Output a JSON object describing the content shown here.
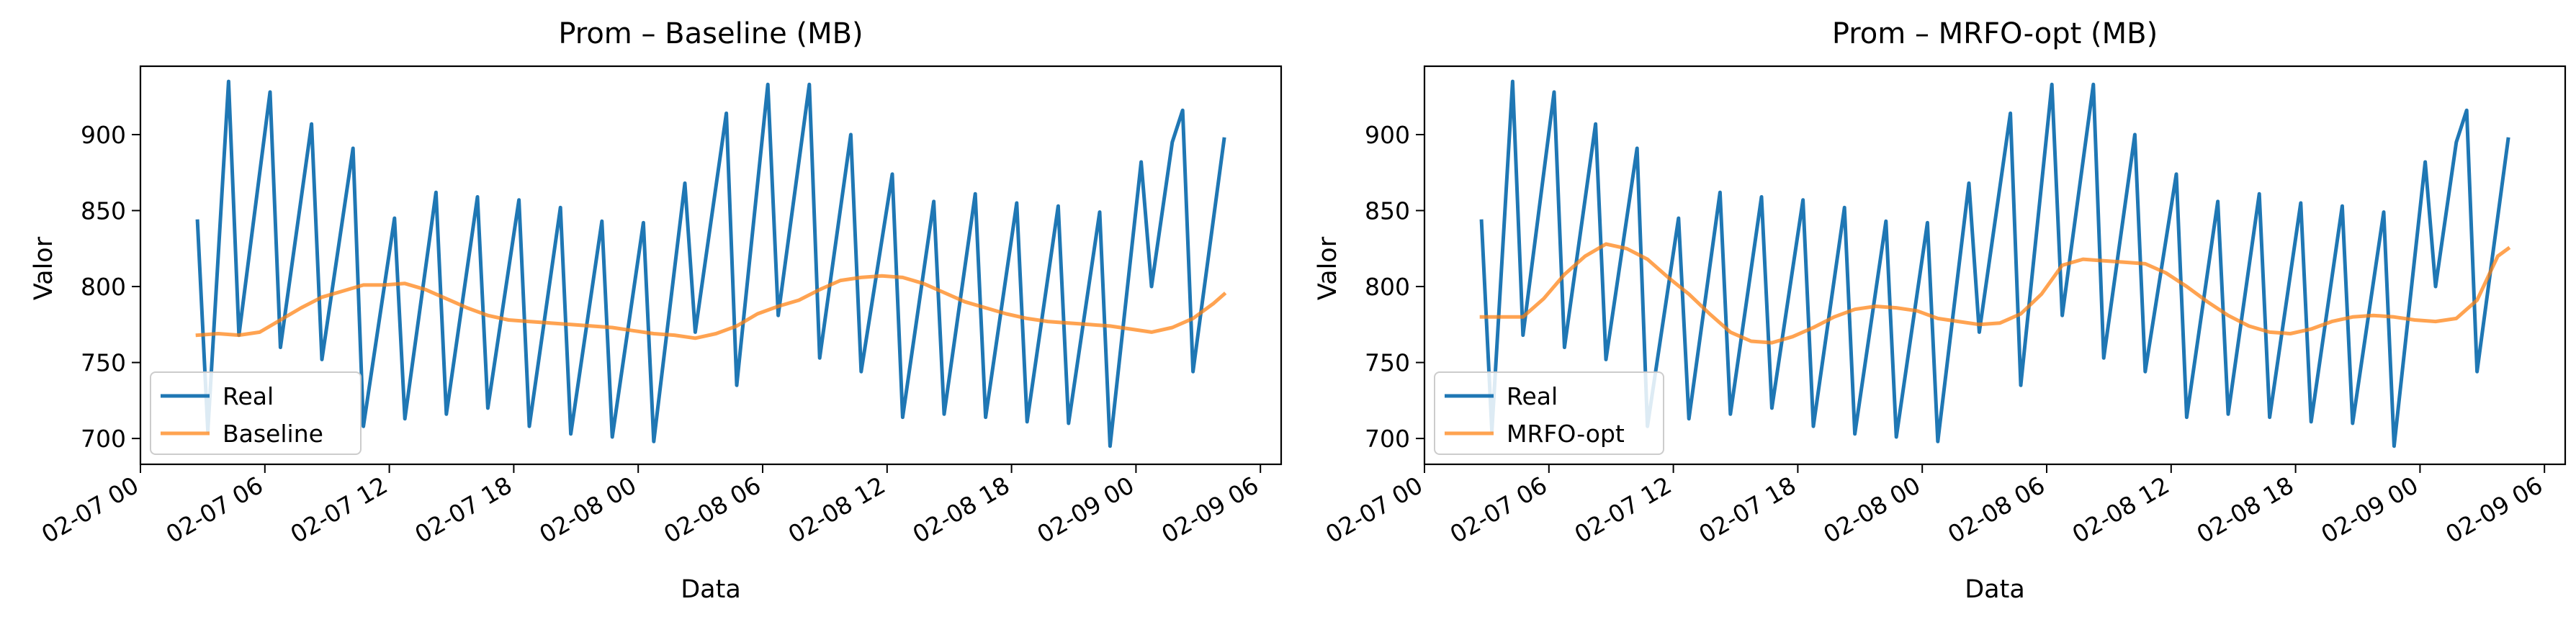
{
  "chart_data": [
    {
      "type": "line",
      "title": "Prom – Baseline (MB)",
      "xlabel": "Data",
      "ylabel": "Valor",
      "xlim": [
        "2023-02-07 00:00",
        "2023-02-09 07:00"
      ],
      "ylim": [
        683,
        945
      ],
      "x_ticks": [
        "02-07 00",
        "02-07 06",
        "02-07 12",
        "02-07 18",
        "02-08 00",
        "02-08 06",
        "02-08 12",
        "02-08 18",
        "02-09 00",
        "02-09 06"
      ],
      "y_ticks": [
        700,
        750,
        800,
        850,
        900
      ],
      "legend": "lower-left",
      "series": [
        {
          "name": "Real",
          "color": "#1f77b4",
          "x": [
            "2023-02-07 02:45",
            "2023-02-07 03:15",
            "2023-02-07 04:15",
            "2023-02-07 04:45",
            "2023-02-07 06:15",
            "2023-02-07 06:45",
            "2023-02-07 08:15",
            "2023-02-07 08:45",
            "2023-02-07 10:15",
            "2023-02-07 10:45",
            "2023-02-07 12:15",
            "2023-02-07 12:45",
            "2023-02-07 14:15",
            "2023-02-07 14:45",
            "2023-02-07 16:15",
            "2023-02-07 16:45",
            "2023-02-07 18:15",
            "2023-02-07 18:45",
            "2023-02-07 20:15",
            "2023-02-07 20:45",
            "2023-02-07 22:15",
            "2023-02-07 22:45",
            "2023-02-08 00:15",
            "2023-02-08 00:45",
            "2023-02-08 02:15",
            "2023-02-08 02:45",
            "2023-02-08 04:15",
            "2023-02-08 04:45",
            "2023-02-08 06:15",
            "2023-02-08 06:45",
            "2023-02-08 08:15",
            "2023-02-08 08:45",
            "2023-02-08 10:15",
            "2023-02-08 10:45",
            "2023-02-08 12:15",
            "2023-02-08 12:45",
            "2023-02-08 14:15",
            "2023-02-08 14:45",
            "2023-02-08 16:15",
            "2023-02-08 16:45",
            "2023-02-08 18:15",
            "2023-02-08 18:45",
            "2023-02-08 20:15",
            "2023-02-08 20:45",
            "2023-02-08 22:15",
            "2023-02-08 22:45",
            "2023-02-09 00:15",
            "2023-02-09 00:45",
            "2023-02-09 01:45",
            "2023-02-09 02:15",
            "2023-02-09 02:45",
            "2023-02-09 04:15"
          ],
          "y": [
            843,
            705,
            935,
            768,
            928,
            760,
            907,
            752,
            891,
            708,
            845,
            713,
            862,
            716,
            859,
            720,
            857,
            708,
            852,
            703,
            843,
            701,
            842,
            698,
            868,
            770,
            914,
            735,
            933,
            781,
            933,
            753,
            900,
            744,
            874,
            714,
            856,
            716,
            861,
            714,
            855,
            711,
            853,
            710,
            849,
            695,
            882,
            800,
            895,
            916,
            744,
            897
          ]
        },
        {
          "name": "Baseline",
          "color": "#ff7f0e",
          "x": [
            "2023-02-07 02:45",
            "2023-02-07 03:45",
            "2023-02-07 04:45",
            "2023-02-07 05:45",
            "2023-02-07 06:45",
            "2023-02-07 07:45",
            "2023-02-07 08:45",
            "2023-02-07 09:45",
            "2023-02-07 10:45",
            "2023-02-07 11:45",
            "2023-02-07 12:45",
            "2023-02-07 13:45",
            "2023-02-07 14:45",
            "2023-02-07 15:45",
            "2023-02-07 16:45",
            "2023-02-07 17:45",
            "2023-02-07 18:45",
            "2023-02-07 19:45",
            "2023-02-07 20:45",
            "2023-02-07 21:45",
            "2023-02-07 22:45",
            "2023-02-07 23:45",
            "2023-02-08 00:45",
            "2023-02-08 01:45",
            "2023-02-08 02:45",
            "2023-02-08 03:45",
            "2023-02-08 04:45",
            "2023-02-08 05:45",
            "2023-02-08 06:45",
            "2023-02-08 07:45",
            "2023-02-08 08:45",
            "2023-02-08 09:45",
            "2023-02-08 10:45",
            "2023-02-08 11:45",
            "2023-02-08 12:45",
            "2023-02-08 13:45",
            "2023-02-08 14:45",
            "2023-02-08 15:45",
            "2023-02-08 16:45",
            "2023-02-08 17:45",
            "2023-02-08 18:45",
            "2023-02-08 19:45",
            "2023-02-08 20:45",
            "2023-02-08 21:45",
            "2023-02-08 22:45",
            "2023-02-08 23:45",
            "2023-02-09 00:45",
            "2023-02-09 01:45",
            "2023-02-09 02:45",
            "2023-02-09 03:45",
            "2023-02-09 04:15"
          ],
          "y": [
            768,
            769,
            768,
            770,
            778,
            786,
            793,
            797,
            801,
            801,
            802,
            798,
            792,
            786,
            781,
            778,
            777,
            776,
            775,
            774,
            773,
            771,
            769,
            768,
            766,
            769,
            774,
            782,
            787,
            791,
            798,
            804,
            806,
            807,
            806,
            802,
            796,
            790,
            786,
            782,
            779,
            777,
            776,
            775,
            774,
            772,
            770,
            773,
            779,
            789,
            795
          ]
        }
      ]
    },
    {
      "type": "line",
      "title": "Prom – MRFO-opt (MB)",
      "xlabel": "Data",
      "ylabel": "Valor",
      "xlim": [
        "2023-02-07 00:00",
        "2023-02-09 07:00"
      ],
      "ylim": [
        683,
        945
      ],
      "x_ticks": [
        "02-07 00",
        "02-07 06",
        "02-07 12",
        "02-07 18",
        "02-08 00",
        "02-08 06",
        "02-08 12",
        "02-08 18",
        "02-09 00",
        "02-09 06"
      ],
      "y_ticks": [
        700,
        750,
        800,
        850,
        900
      ],
      "legend": "lower-left",
      "series": [
        {
          "name": "Real",
          "color": "#1f77b4",
          "x": [
            "2023-02-07 02:45",
            "2023-02-07 03:15",
            "2023-02-07 04:15",
            "2023-02-07 04:45",
            "2023-02-07 06:15",
            "2023-02-07 06:45",
            "2023-02-07 08:15",
            "2023-02-07 08:45",
            "2023-02-07 10:15",
            "2023-02-07 10:45",
            "2023-02-07 12:15",
            "2023-02-07 12:45",
            "2023-02-07 14:15",
            "2023-02-07 14:45",
            "2023-02-07 16:15",
            "2023-02-07 16:45",
            "2023-02-07 18:15",
            "2023-02-07 18:45",
            "2023-02-07 20:15",
            "2023-02-07 20:45",
            "2023-02-07 22:15",
            "2023-02-07 22:45",
            "2023-02-08 00:15",
            "2023-02-08 00:45",
            "2023-02-08 02:15",
            "2023-02-08 02:45",
            "2023-02-08 04:15",
            "2023-02-08 04:45",
            "2023-02-08 06:15",
            "2023-02-08 06:45",
            "2023-02-08 08:15",
            "2023-02-08 08:45",
            "2023-02-08 10:15",
            "2023-02-08 10:45",
            "2023-02-08 12:15",
            "2023-02-08 12:45",
            "2023-02-08 14:15",
            "2023-02-08 14:45",
            "2023-02-08 16:15",
            "2023-02-08 16:45",
            "2023-02-08 18:15",
            "2023-02-08 18:45",
            "2023-02-08 20:15",
            "2023-02-08 20:45",
            "2023-02-08 22:15",
            "2023-02-08 22:45",
            "2023-02-09 00:15",
            "2023-02-09 00:45",
            "2023-02-09 01:45",
            "2023-02-09 02:15",
            "2023-02-09 02:45",
            "2023-02-09 04:15"
          ],
          "y": [
            843,
            705,
            935,
            768,
            928,
            760,
            907,
            752,
            891,
            708,
            845,
            713,
            862,
            716,
            859,
            720,
            857,
            708,
            852,
            703,
            843,
            701,
            842,
            698,
            868,
            770,
            914,
            735,
            933,
            781,
            933,
            753,
            900,
            744,
            874,
            714,
            856,
            716,
            861,
            714,
            855,
            711,
            853,
            710,
            849,
            695,
            882,
            800,
            895,
            916,
            744,
            897
          ]
        },
        {
          "name": "MRFO-opt",
          "color": "#ff7f0e",
          "x": [
            "2023-02-07 02:45",
            "2023-02-07 03:45",
            "2023-02-07 04:45",
            "2023-02-07 05:45",
            "2023-02-07 06:45",
            "2023-02-07 07:45",
            "2023-02-07 08:45",
            "2023-02-07 09:45",
            "2023-02-07 10:45",
            "2023-02-07 11:45",
            "2023-02-07 12:45",
            "2023-02-07 13:45",
            "2023-02-07 14:45",
            "2023-02-07 15:45",
            "2023-02-07 16:45",
            "2023-02-07 17:45",
            "2023-02-07 18:45",
            "2023-02-07 19:45",
            "2023-02-07 20:45",
            "2023-02-07 21:45",
            "2023-02-07 22:45",
            "2023-02-07 23:45",
            "2023-02-08 00:45",
            "2023-02-08 01:45",
            "2023-02-08 02:45",
            "2023-02-08 03:45",
            "2023-02-08 04:45",
            "2023-02-08 05:45",
            "2023-02-08 06:45",
            "2023-02-08 07:45",
            "2023-02-08 08:45",
            "2023-02-08 09:45",
            "2023-02-08 10:45",
            "2023-02-08 11:45",
            "2023-02-08 12:45",
            "2023-02-08 13:45",
            "2023-02-08 14:45",
            "2023-02-08 15:45",
            "2023-02-08 16:45",
            "2023-02-08 17:45",
            "2023-02-08 18:45",
            "2023-02-08 19:45",
            "2023-02-08 20:45",
            "2023-02-08 21:45",
            "2023-02-08 22:45",
            "2023-02-08 23:45",
            "2023-02-09 00:45",
            "2023-02-09 01:45",
            "2023-02-09 02:45",
            "2023-02-09 03:45",
            "2023-02-09 04:15"
          ],
          "y": [
            780,
            780,
            780,
            792,
            808,
            820,
            828,
            825,
            818,
            806,
            795,
            782,
            770,
            764,
            763,
            767,
            773,
            780,
            785,
            787,
            786,
            784,
            779,
            777,
            775,
            776,
            782,
            795,
            814,
            818,
            817,
            816,
            815,
            809,
            800,
            790,
            781,
            774,
            770,
            769,
            772,
            777,
            780,
            781,
            780,
            778,
            777,
            779,
            791,
            820,
            825
          ]
        }
      ]
    }
  ]
}
